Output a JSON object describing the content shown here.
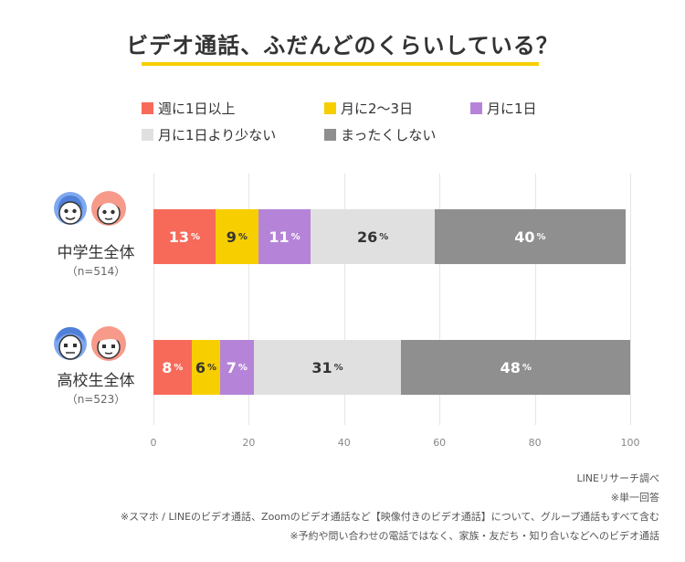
{
  "chart_data": {
    "type": "bar",
    "orientation": "horizontal",
    "stacked": true,
    "title": "ビデオ通話、ふだんどのくらいしている？",
    "categories": [
      {
        "label": "中学生全体",
        "sample": "（n=514）"
      },
      {
        "label": "高校生全体",
        "sample": "（n=523）"
      }
    ],
    "series": [
      {
        "name": "週に1日以上",
        "color": "#f76a5a",
        "text_color": "#ffffff",
        "values": [
          13,
          8
        ]
      },
      {
        "name": "月に2〜3日",
        "color": "#f7ce00",
        "text_color": "#333333",
        "values": [
          9,
          6
        ]
      },
      {
        "name": "月に1日",
        "color": "#b584d8",
        "text_color": "#ffffff",
        "values": [
          11,
          7
        ]
      },
      {
        "name": "月に1日より少ない",
        "color": "#e0e0e0",
        "text_color": "#333333",
        "values": [
          26,
          31
        ]
      },
      {
        "name": "まったくしない",
        "color": "#8f8f8f",
        "text_color": "#ffffff",
        "values": [
          40,
          48
        ]
      }
    ],
    "percent_symbol": "%",
    "xlim": [
      0,
      100
    ],
    "xticks": [
      "0",
      "20",
      "40",
      "60",
      "80",
      "100"
    ],
    "grid": true,
    "legend_position": "top"
  },
  "notes": [
    "LINEリサーチ調べ",
    "※単一回答",
    "※スマホ / LINEのビデオ通話、Zoomのビデオ通話など【映像付きのビデオ通話】について、グループ通話もすべて含む",
    "※予約や問い合わせの電話ではなく、家族・友だち・知り合いなどへのビデオ通話"
  ]
}
